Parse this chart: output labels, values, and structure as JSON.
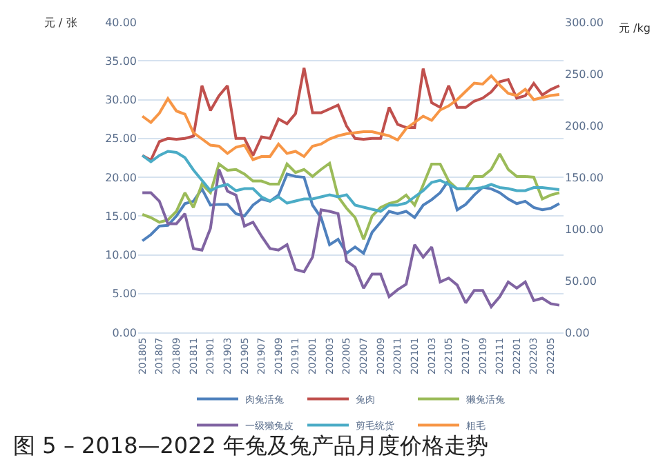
{
  "chart_data": {
    "type": "line",
    "title": "图 5 – 2018—2022 年兔及兔产品月度价格走势",
    "ylabel": "元 / 张",
    "y2label": "元 /kg",
    "categories": [
      "201805",
      null,
      "201807",
      null,
      "201809",
      null,
      "201811",
      null,
      "201901",
      null,
      "201903",
      null,
      "201905",
      null,
      "201907",
      null,
      "201909",
      null,
      "201911",
      null,
      "202001",
      null,
      "202003",
      null,
      "202005",
      null,
      "202007",
      null,
      "202009",
      null,
      "202011",
      null,
      "202101",
      null,
      "202103",
      null,
      "202105",
      null,
      "202107",
      null,
      "202109",
      null,
      "202111",
      null,
      "202201",
      null,
      "202203",
      null,
      "202205",
      null
    ],
    "ylim": [
      0,
      40
    ],
    "yticks": [
      {
        "value": 0,
        "label": "0.00"
      },
      {
        "value": 5,
        "label": "5.00"
      },
      {
        "value": 10,
        "label": "10.00"
      },
      {
        "value": 15,
        "label": "15.00"
      },
      {
        "value": 20,
        "label": "20.00"
      },
      {
        "value": 25,
        "label": "25.00"
      },
      {
        "value": 30,
        "label": "30.00"
      },
      {
        "value": 35,
        "label": "35.00"
      },
      {
        "value": 40,
        "label": "40.00"
      }
    ],
    "y2lim": [
      0,
      300
    ],
    "y2ticks": [
      {
        "value": 0,
        "label": "0.00"
      },
      {
        "value": 50,
        "label": "50.00"
      },
      {
        "value": 100,
        "label": "100.00"
      },
      {
        "value": 150,
        "label": "150.00"
      },
      {
        "value": 200,
        "label": "200.00"
      },
      {
        "value": 250,
        "label": "250.00"
      },
      {
        "value": 300,
        "label": "300.00"
      }
    ],
    "grid": "y",
    "legend": "bottom",
    "marker": "none",
    "line_style": "solid",
    "series": [
      {
        "name": "肉兔活兔",
        "color": "#4f81bd",
        "values": [
          11.8,
          12.6,
          13.7,
          13.8,
          15.0,
          16.6,
          16.9,
          18.5,
          16.4,
          16.5,
          16.5,
          15.3,
          15.0,
          16.4,
          17.2,
          16.9,
          17.7,
          20.4,
          20.1,
          20.0,
          16.4,
          14.8,
          11.3,
          12.0,
          10.2,
          11.0,
          10.2,
          12.9,
          14.2,
          15.6,
          15.3,
          15.6,
          14.8,
          16.4,
          17.1,
          18.0,
          19.6,
          15.8,
          16.5,
          17.7,
          18.7,
          18.5,
          18.0,
          17.2,
          16.6,
          16.9,
          16.1,
          15.8,
          16.0,
          16.6
        ]
      },
      {
        "name": "兔肉",
        "color": "#c0504d",
        "values": [
          22.8,
          22.2,
          24.6,
          25.0,
          24.9,
          25.0,
          25.3,
          31.8,
          28.6,
          30.5,
          31.8,
          25.0,
          25.0,
          22.8,
          25.2,
          25.0,
          27.5,
          26.9,
          28.2,
          34.1,
          28.3,
          28.3,
          28.8,
          29.3,
          26.6,
          25.0,
          24.9,
          25.0,
          25.0,
          29.0,
          26.8,
          26.4,
          26.4,
          34.0,
          29.6,
          29.0,
          31.8,
          29.0,
          29.0,
          29.8,
          30.2,
          31.0,
          32.3,
          32.6,
          30.2,
          30.5,
          32.1,
          30.6,
          31.3,
          31.8
        ]
      },
      {
        "name": "獭兔活兔",
        "color": "#9bbb59",
        "values": [
          15.2,
          14.8,
          14.2,
          14.5,
          15.6,
          18.0,
          16.1,
          19.1,
          18.0,
          21.7,
          20.9,
          21.0,
          20.4,
          19.5,
          19.5,
          19.1,
          19.1,
          21.7,
          20.6,
          21.0,
          20.1,
          21.0,
          21.8,
          17.5,
          16.0,
          14.8,
          12.0,
          15.0,
          16.1,
          16.6,
          16.9,
          17.7,
          16.4,
          19.0,
          21.7,
          21.7,
          19.5,
          18.5,
          18.5,
          20.1,
          20.1,
          21.0,
          23.0,
          21.0,
          20.1,
          20.1,
          20.0,
          17.2,
          17.7,
          18.0
        ]
      },
      {
        "name": "一级獭兔皮",
        "color": "#8064a2",
        "values": [
          18.0,
          18.0,
          16.9,
          14.0,
          14.0,
          15.3,
          10.8,
          10.6,
          13.4,
          21.0,
          18.2,
          17.7,
          13.7,
          14.2,
          12.4,
          10.8,
          10.6,
          11.3,
          8.1,
          7.8,
          9.7,
          15.8,
          15.6,
          15.3,
          9.2,
          8.4,
          5.7,
          7.5,
          7.5,
          4.6,
          5.5,
          6.2,
          11.3,
          9.7,
          11.0,
          6.5,
          7.0,
          6.1,
          3.8,
          5.4,
          5.4,
          3.3,
          4.6,
          6.5,
          5.7,
          6.5,
          4.1,
          4.4,
          3.7,
          3.5
        ]
      },
      {
        "name": "剪毛统货",
        "color": "#4bacc6",
        "axis": "y2",
        "values": [
          171,
          165,
          171,
          175,
          174,
          169,
          157,
          147,
          137,
          141,
          143,
          137,
          139,
          139,
          131,
          127,
          131,
          125,
          127,
          129,
          129,
          131,
          133,
          131,
          133,
          123,
          121,
          119,
          117,
          123,
          123,
          125,
          131,
          137,
          145,
          147,
          143,
          139,
          139,
          139,
          140,
          143,
          140,
          139,
          137,
          137,
          140,
          140,
          139,
          138
        ]
      },
      {
        "name": "粗毛",
        "color": "#f79646",
        "axis": "y2",
        "values": [
          209,
          203,
          212,
          226,
          214,
          211,
          193,
          187,
          181,
          180,
          173,
          179,
          181,
          167,
          170,
          170,
          182,
          173,
          175,
          170,
          180,
          182,
          187,
          190,
          192,
          193,
          194,
          194,
          192,
          190,
          186,
          197,
          203,
          209,
          205,
          215,
          219,
          225,
          233,
          241,
          240,
          248,
          239,
          231,
          229,
          235,
          225,
          227,
          229,
          230
        ]
      }
    ]
  }
}
